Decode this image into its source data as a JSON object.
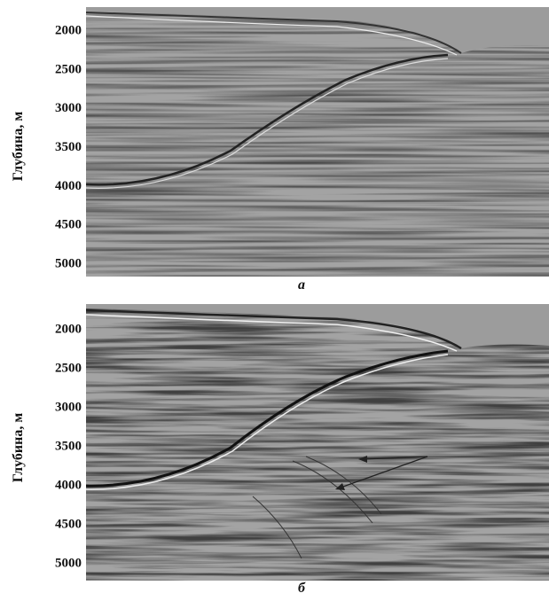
{
  "panels": [
    {
      "ylabel": "Глубина, м",
      "yticks": [
        2000,
        2500,
        3000,
        3500,
        4000,
        4500,
        5000
      ],
      "caption": "а"
    },
    {
      "ylabel": "Глубина, м",
      "yticks": [
        2000,
        2500,
        3000,
        3500,
        4000,
        4500,
        5000
      ],
      "caption": "б"
    }
  ]
}
